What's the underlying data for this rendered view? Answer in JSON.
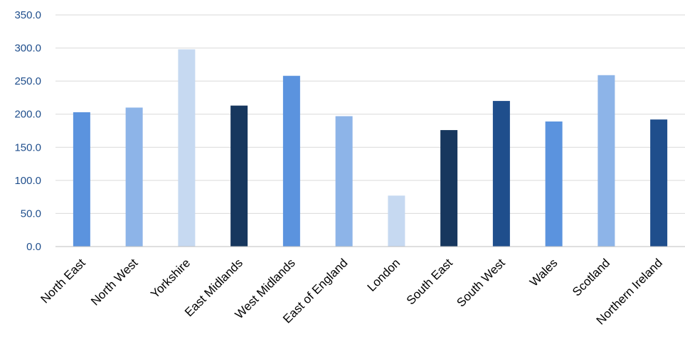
{
  "chart_data": {
    "type": "bar",
    "title": "",
    "xlabel": "",
    "ylabel": "",
    "ylim": [
      0,
      350
    ],
    "yticks": [
      "0.0",
      "50.0",
      "100.0",
      "150.0",
      "200.0",
      "250.0",
      "300.0",
      "350.0"
    ],
    "grid": true,
    "legend": "none",
    "categories": [
      "North East",
      "North West",
      "Yorkshire",
      "East Midlands",
      "West Midlands",
      "East of England",
      "London",
      "South East",
      "South West",
      "Wales",
      "Scotland",
      "Northern Ireland"
    ],
    "values": [
      203,
      210,
      298,
      213,
      258,
      197,
      77,
      176,
      220,
      189,
      259,
      192
    ],
    "colors": [
      "#5b93de",
      "#8db4e8",
      "#c6d9f1",
      "#17375e",
      "#5b93de",
      "#8db4e8",
      "#c6d9f1",
      "#17375e",
      "#1f4e8c",
      "#5b93de",
      "#8db4e8",
      "#1f4e8c"
    ]
  }
}
